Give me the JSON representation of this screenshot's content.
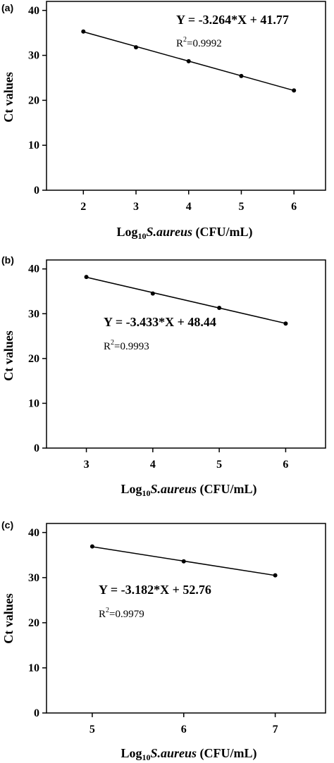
{
  "chart_data": [
    {
      "panel": "(a)",
      "type": "scatter",
      "x": [
        2,
        3,
        4,
        5,
        6
      ],
      "y": [
        35.3,
        31.8,
        28.7,
        25.4,
        22.2
      ],
      "xlim": [
        1.3,
        6.6
      ],
      "ylim": [
        0,
        42
      ],
      "xticks": [
        2,
        3,
        4,
        5,
        6
      ],
      "yticks": [
        0,
        10,
        20,
        30,
        40
      ],
      "xlabel": {
        "prefix": "Log",
        "sub": "10",
        "italic": "S.aureus",
        "suffix": " (CFU/mL)"
      },
      "ylabel": "Ct values",
      "fit": {
        "slope": -3.264,
        "intercept": 41.77
      },
      "equation": "Y = -3.264*X + 41.77",
      "r2": {
        "prefix": "R",
        "sup": "2",
        "value": "=0.9992"
      }
    },
    {
      "panel": "(b)",
      "type": "scatter",
      "x": [
        3,
        4,
        5,
        6
      ],
      "y": [
        38.2,
        34.5,
        31.3,
        27.8
      ],
      "xlim": [
        2.4,
        6.6
      ],
      "ylim": [
        0,
        42
      ],
      "xticks": [
        3,
        4,
        5,
        6
      ],
      "yticks": [
        0,
        10,
        20,
        30,
        40
      ],
      "xlabel": {
        "prefix": "Log",
        "sub": "10",
        "italic": "S.aureus",
        "suffix": " (CFU/mL)"
      },
      "ylabel": "Ct values",
      "fit": {
        "slope": -3.433,
        "intercept": 48.44
      },
      "equation": "Y = -3.433*X + 48.44",
      "r2": {
        "prefix": "R",
        "sup": "2",
        "value": "=0.9993"
      }
    },
    {
      "panel": "(c)",
      "type": "scatter",
      "x": [
        5,
        6,
        7
      ],
      "y": [
        36.9,
        33.6,
        30.5
      ],
      "xlim": [
        4.5,
        7.55
      ],
      "ylim": [
        0,
        42
      ],
      "xticks": [
        5,
        6,
        7
      ],
      "yticks": [
        0,
        10,
        20,
        30,
        40
      ],
      "xlabel": {
        "prefix": "Log",
        "sub": "10",
        "italic": "S.aureus",
        "suffix": " (CFU/mL)"
      },
      "ylabel": "Ct values",
      "fit": {
        "slope": -3.182,
        "intercept": 52.76
      },
      "equation": "Y = -3.182*X + 52.76",
      "r2": {
        "prefix": "R",
        "sup": "2",
        "value": "=0.9979"
      }
    }
  ]
}
